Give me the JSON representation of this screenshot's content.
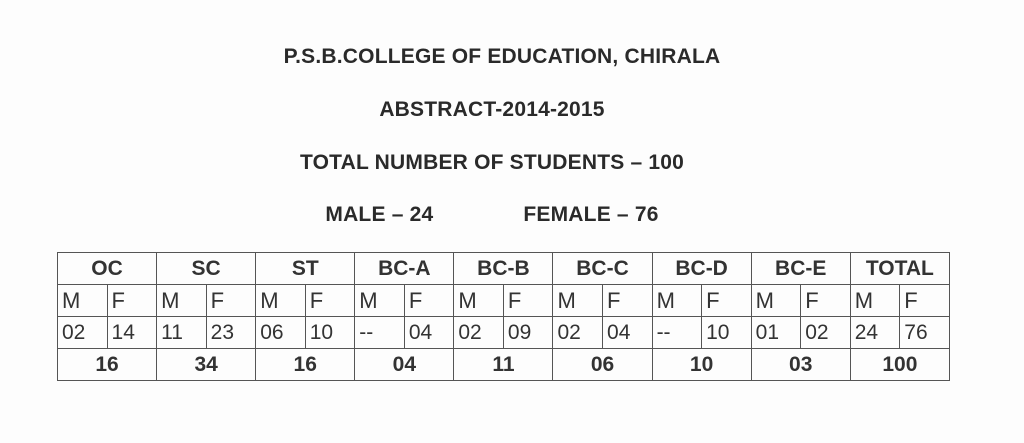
{
  "header": {
    "college": "P.S.B.COLLEGE OF EDUCATION, CHIRALA",
    "abstract": "ABSTRACT-2014-2015",
    "total_students": "TOTAL NUMBER OF STUDENTS – 100",
    "male": "MALE – 24",
    "female": "FEMALE – 76"
  },
  "table": {
    "sub_m": "M",
    "sub_f": "F",
    "groups": [
      {
        "name": "OC",
        "m": "02",
        "f": "14",
        "total": "16"
      },
      {
        "name": "SC",
        "m": "11",
        "f": "23",
        "total": "34"
      },
      {
        "name": "ST",
        "m": "06",
        "f": "10",
        "total": "16"
      },
      {
        "name": "BC-A",
        "m": "--",
        "f": "04",
        "total": "04"
      },
      {
        "name": "BC-B",
        "m": "02",
        "f": "09",
        "total": "11"
      },
      {
        "name": "BC-C",
        "m": "02",
        "f": "04",
        "total": "06"
      },
      {
        "name": "BC-D",
        "m": "--",
        "f": "10",
        "total": "10"
      },
      {
        "name": "BC-E",
        "m": "01",
        "f": "02",
        "total": "03"
      },
      {
        "name": "TOTAL",
        "m": "24",
        "f": "76",
        "total": "100"
      }
    ]
  }
}
